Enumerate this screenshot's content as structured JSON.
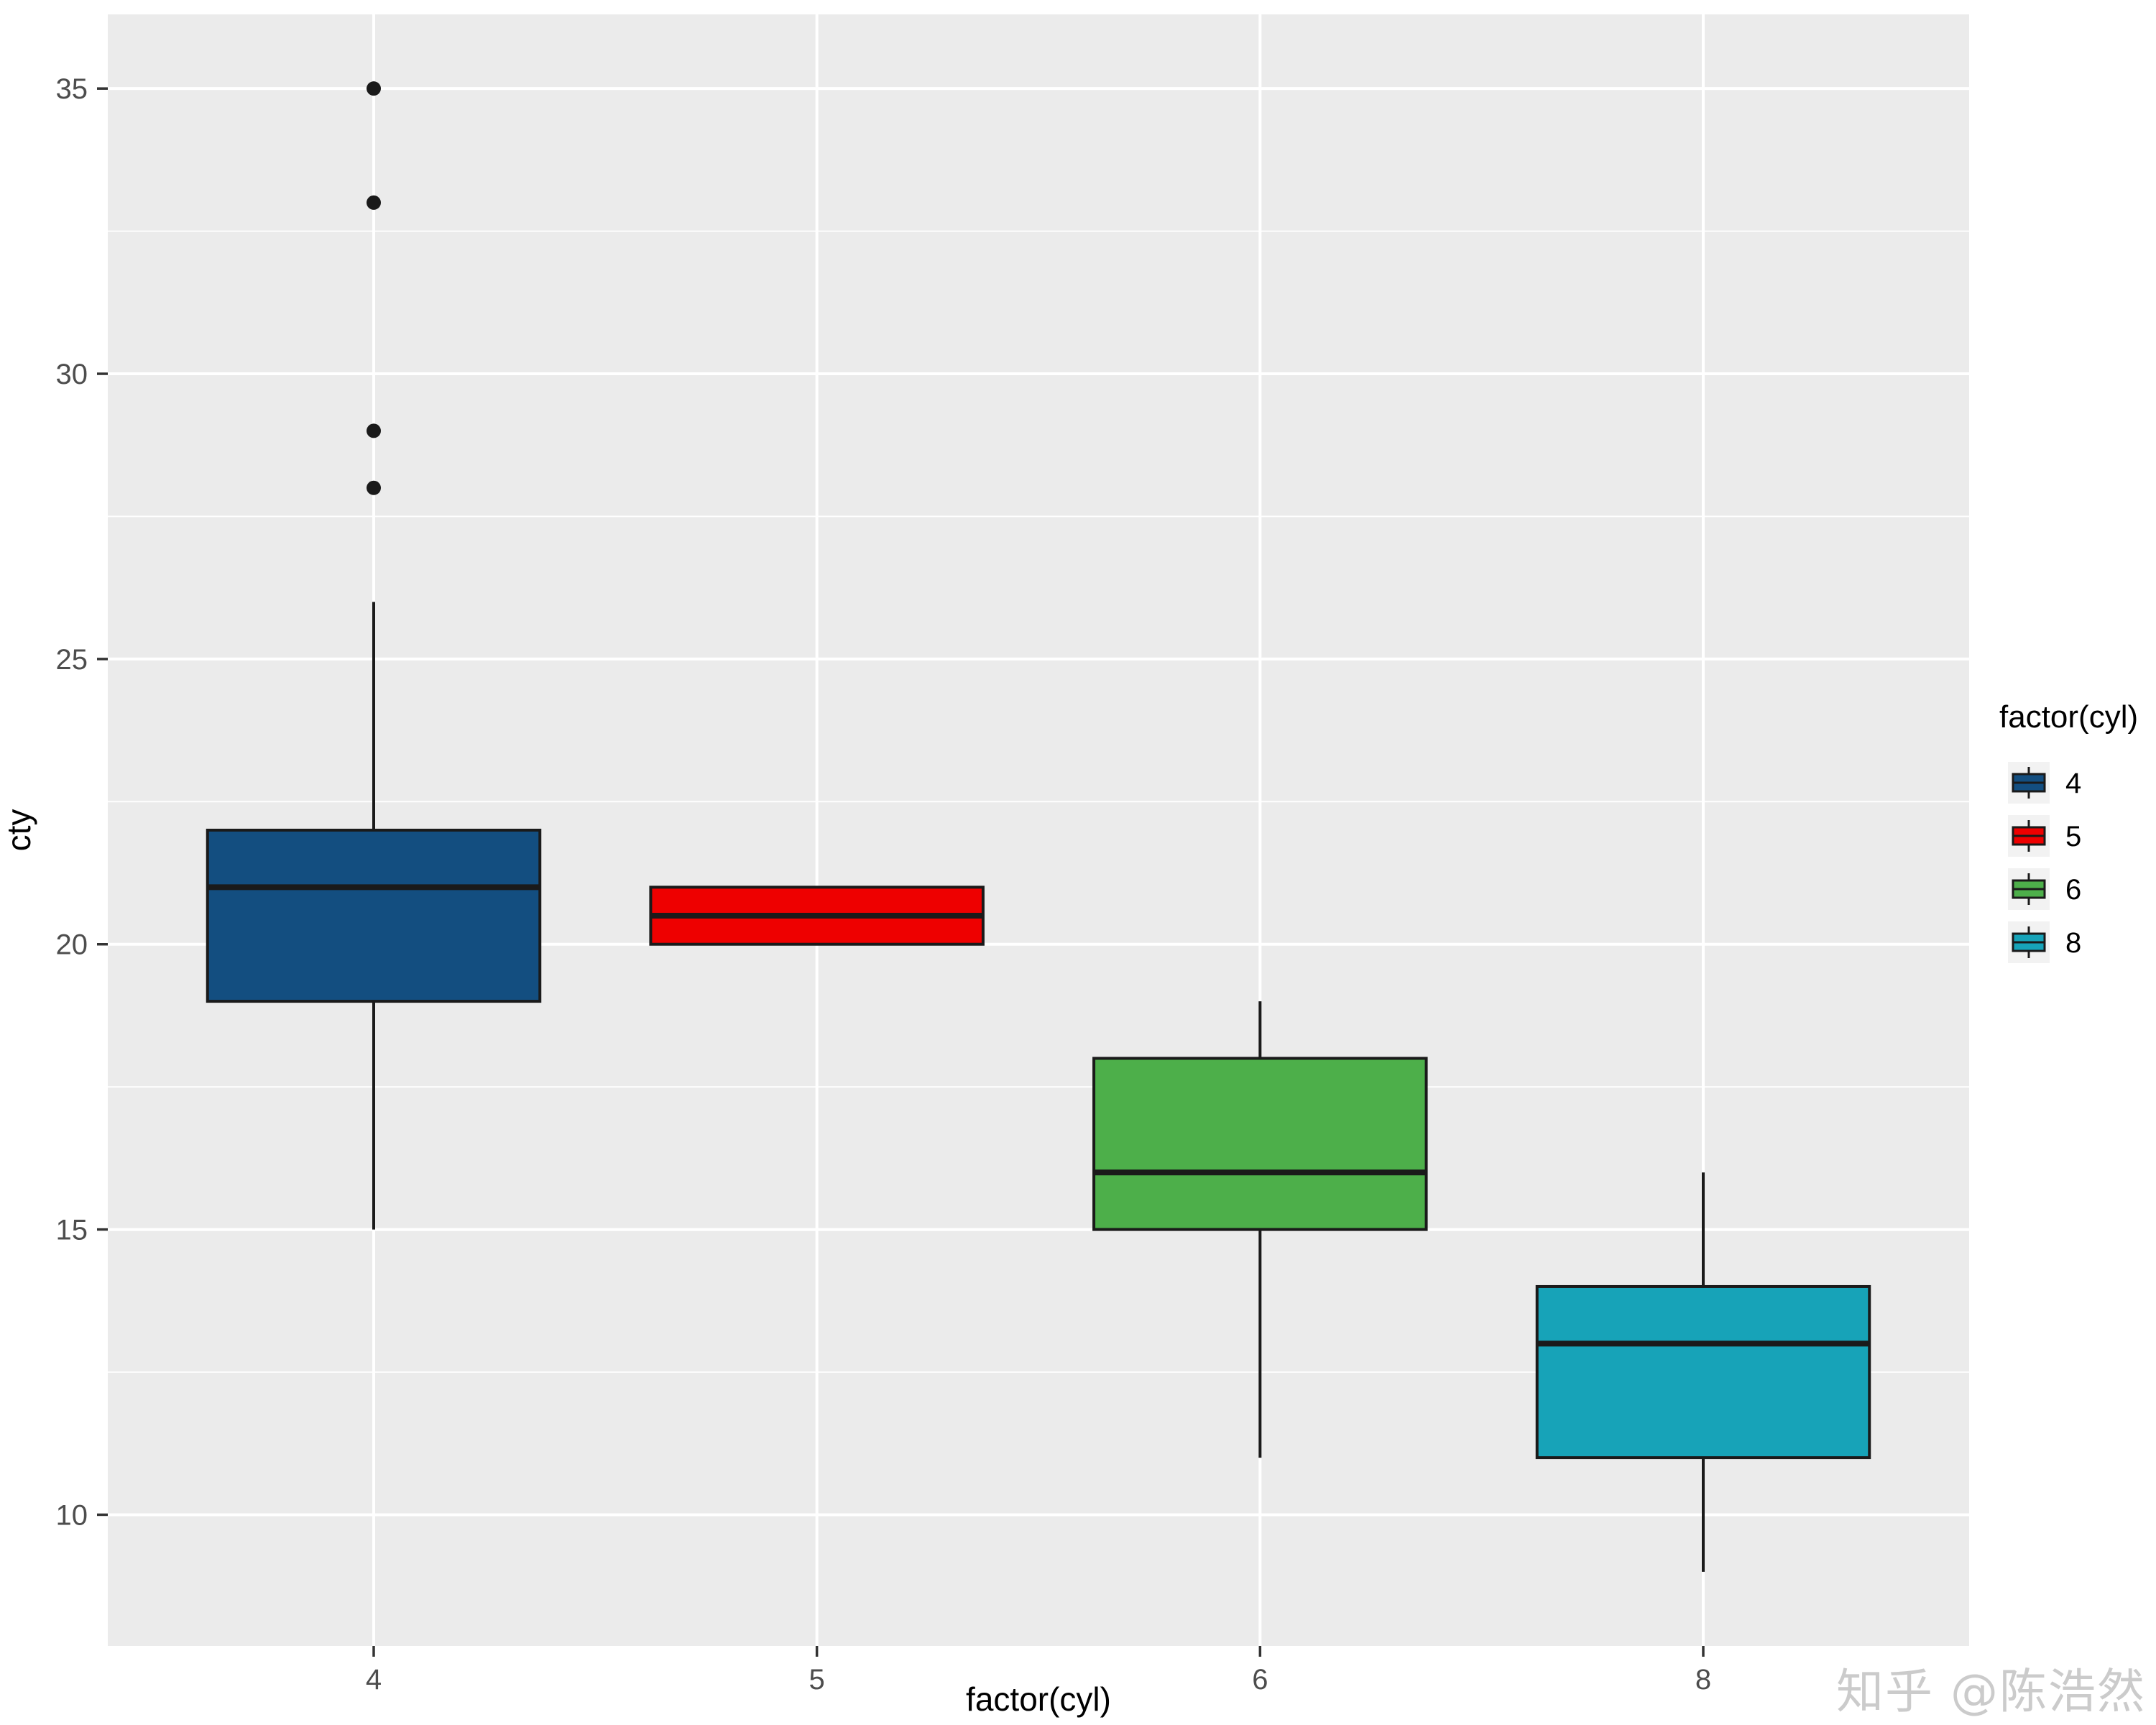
{
  "watermark": "知乎 @陈浩然",
  "axes": {
    "x": {
      "title": "factor(cyl)",
      "categories": [
        "4",
        "5",
        "6",
        "8"
      ]
    },
    "y": {
      "title": "cty",
      "ticks": [
        10,
        15,
        20,
        25,
        30,
        35
      ],
      "minor_ticks": [
        12.5,
        17.5,
        22.5,
        27.5,
        32.5
      ]
    }
  },
  "legend": {
    "title": "factor(cyl)",
    "position": "right",
    "entries": [
      {
        "label": "4",
        "color": "#134E80"
      },
      {
        "label": "5",
        "color": "#EE0000"
      },
      {
        "label": "6",
        "color": "#4DAF4A"
      },
      {
        "label": "8",
        "color": "#17A3B8"
      }
    ]
  },
  "chart_data": {
    "type": "boxplot",
    "title": "",
    "xlabel": "factor(cyl)",
    "ylabel": "cty",
    "categories": [
      "4",
      "5",
      "6",
      "8"
    ],
    "ylim": [
      7.7,
      36.3
    ],
    "grid": true,
    "legend_position": "right",
    "series": [
      {
        "category": "4",
        "color": "#134E80",
        "whisker_low": 15,
        "q1": 19,
        "median": 21,
        "q3": 22,
        "whisker_high": 26,
        "outliers": [
          28,
          29,
          33,
          35
        ]
      },
      {
        "category": "5",
        "color": "#EE0000",
        "whisker_low": 20,
        "q1": 20,
        "median": 20.5,
        "q3": 21,
        "whisker_high": 21,
        "outliers": []
      },
      {
        "category": "6",
        "color": "#4DAF4A",
        "whisker_low": 11,
        "q1": 15,
        "median": 16,
        "q3": 18,
        "whisker_high": 19,
        "outliers": []
      },
      {
        "category": "8",
        "color": "#17A3B8",
        "whisker_low": 9,
        "q1": 11,
        "median": 13,
        "q3": 14,
        "whisker_high": 16,
        "outliers": []
      }
    ]
  },
  "colors": {
    "panel_bg": "#EBEBEB",
    "grid_major": "#FFFFFF",
    "grid_minor": "#FFFFFF",
    "box_stroke": "#1A1A1A",
    "outlier": "#1A1A1A",
    "tick_mark": "#333333",
    "tick_label": "#4D4D4D",
    "axis_title": "#000000",
    "legend_key_bg": "#F2F2F2",
    "watermark": "#CBCBCB"
  }
}
